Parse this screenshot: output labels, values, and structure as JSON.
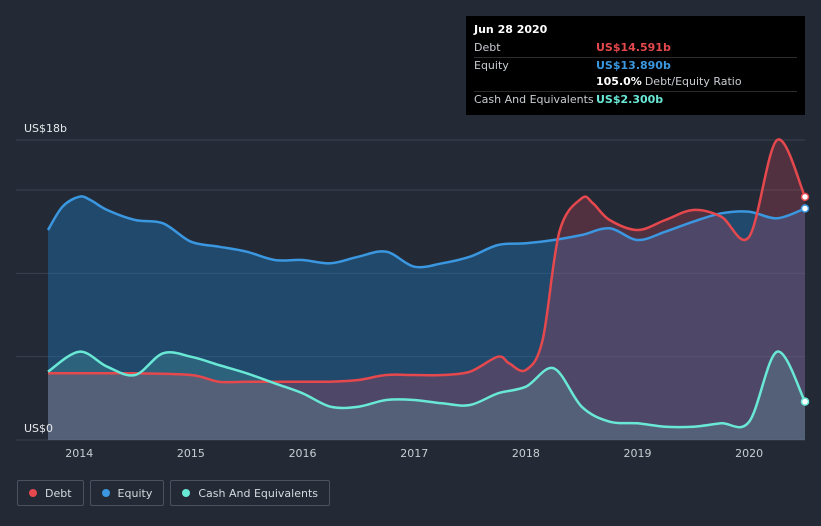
{
  "colors": {
    "debt": "#e5484d",
    "equity": "#3a97e0",
    "cash": "#6ae8d6",
    "grid": "#3a4250",
    "axis_text": "#c9ccd1"
  },
  "tooltip": {
    "date": "Jun 28 2020",
    "debt_label": "Debt",
    "debt_value": "US$14.591b",
    "equity_label": "Equity",
    "equity_value": "US$13.890b",
    "ratio_value": "105.0%",
    "ratio_label": "Debt/Equity Ratio",
    "cash_label": "Cash And Equivalents",
    "cash_value": "US$2.300b"
  },
  "legend": {
    "debt": "Debt",
    "equity": "Equity",
    "cash": "Cash And Equivalents"
  },
  "chart_data": {
    "type": "area",
    "title": "",
    "ylabel": "",
    "xlabel": "",
    "y_top_label": "US$18b",
    "y_bottom_label": "US$0",
    "ylim": [
      0,
      18
    ],
    "xlim": [
      2013.72,
      2020.5
    ],
    "x_ticks": [
      {
        "value": 2014,
        "label": "2014"
      },
      {
        "value": 2015,
        "label": "2015"
      },
      {
        "value": 2016,
        "label": "2016"
      },
      {
        "value": 2017,
        "label": "2017"
      },
      {
        "value": 2018,
        "label": "2018"
      },
      {
        "value": 2019,
        "label": "2019"
      },
      {
        "value": 2020,
        "label": "2020"
      }
    ],
    "series": [
      {
        "name": "Equity",
        "key": "equity",
        "x": [
          2013.72,
          2013.85,
          2014.0,
          2014.1,
          2014.25,
          2014.5,
          2014.75,
          2015.0,
          2015.25,
          2015.5,
          2015.75,
          2016.0,
          2016.25,
          2016.5,
          2016.75,
          2017.0,
          2017.25,
          2017.5,
          2017.75,
          2018.0,
          2018.25,
          2018.5,
          2018.75,
          2019.0,
          2019.25,
          2019.5,
          2019.75,
          2020.0,
          2020.25,
          2020.5
        ],
        "values": [
          12.6,
          14.0,
          14.6,
          14.4,
          13.8,
          13.2,
          13.0,
          11.9,
          11.6,
          11.3,
          10.8,
          10.8,
          10.6,
          11.0,
          11.3,
          10.4,
          10.6,
          11.0,
          11.7,
          11.8,
          12.0,
          12.3,
          12.7,
          12.0,
          12.5,
          13.1,
          13.6,
          13.7,
          13.3,
          13.89
        ]
      },
      {
        "name": "Debt",
        "key": "debt",
        "x": [
          2013.72,
          2014.0,
          2014.5,
          2015.0,
          2015.25,
          2015.5,
          2015.75,
          2016.0,
          2016.25,
          2016.5,
          2016.75,
          2017.0,
          2017.25,
          2017.5,
          2017.75,
          2017.85,
          2018.0,
          2018.15,
          2018.3,
          2018.5,
          2018.6,
          2018.75,
          2019.0,
          2019.25,
          2019.5,
          2019.75,
          2020.0,
          2020.25,
          2020.5
        ],
        "values": [
          4.0,
          4.0,
          4.0,
          3.9,
          3.5,
          3.5,
          3.5,
          3.5,
          3.5,
          3.6,
          3.9,
          3.9,
          3.9,
          4.1,
          5.0,
          4.6,
          4.2,
          6.0,
          12.5,
          14.5,
          14.2,
          13.2,
          12.6,
          13.2,
          13.8,
          13.4,
          12.2,
          18.0,
          14.59
        ]
      },
      {
        "name": "Cash And Equivalents",
        "key": "cash",
        "x": [
          2013.72,
          2014.0,
          2014.25,
          2014.5,
          2014.75,
          2015.0,
          2015.25,
          2015.5,
          2015.75,
          2016.0,
          2016.25,
          2016.5,
          2016.75,
          2017.0,
          2017.25,
          2017.5,
          2017.75,
          2018.0,
          2018.25,
          2018.5,
          2018.75,
          2019.0,
          2019.25,
          2019.5,
          2019.75,
          2020.0,
          2020.25,
          2020.5
        ],
        "values": [
          4.1,
          5.3,
          4.4,
          3.9,
          5.2,
          5.0,
          4.5,
          4.0,
          3.4,
          2.8,
          2.0,
          2.0,
          2.4,
          2.4,
          2.2,
          2.1,
          2.8,
          3.2,
          4.3,
          2.0,
          1.1,
          1.0,
          0.8,
          0.8,
          1.0,
          1.1,
          5.3,
          2.3
        ]
      }
    ]
  }
}
